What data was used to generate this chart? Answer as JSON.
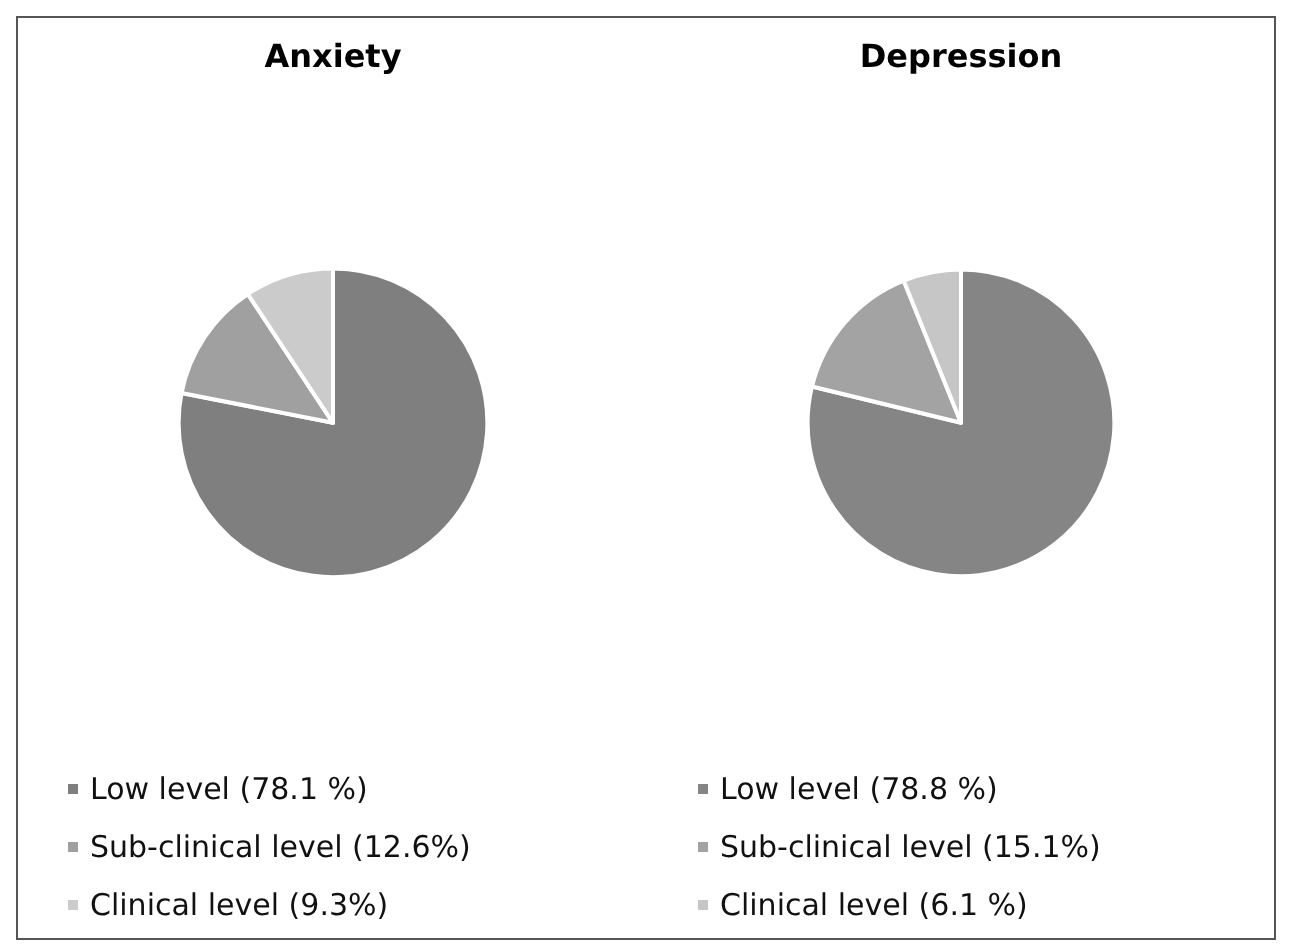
{
  "chart_data": [
    {
      "type": "pie",
      "title": "Anxiety",
      "categories": [
        "Low level (78.1 %)",
        "Sub-clinical level (12.6%)",
        "Clinical level (9.3%)"
      ],
      "values": [
        78.1,
        12.6,
        9.3
      ],
      "colors": [
        "#7f7f7f",
        "#a0a0a0",
        "#cbcbcb"
      ],
      "legend": "bottom"
    },
    {
      "type": "pie",
      "title": "Depression",
      "categories": [
        "Low level (78.8 %)",
        "Sub-clinical level (15.1%)",
        "Clinical level (6.1 %)"
      ],
      "values": [
        78.8,
        15.1,
        6.1
      ],
      "colors": [
        "#858585",
        "#a3a3a3",
        "#c6c6c6"
      ],
      "legend": "bottom"
    }
  ]
}
